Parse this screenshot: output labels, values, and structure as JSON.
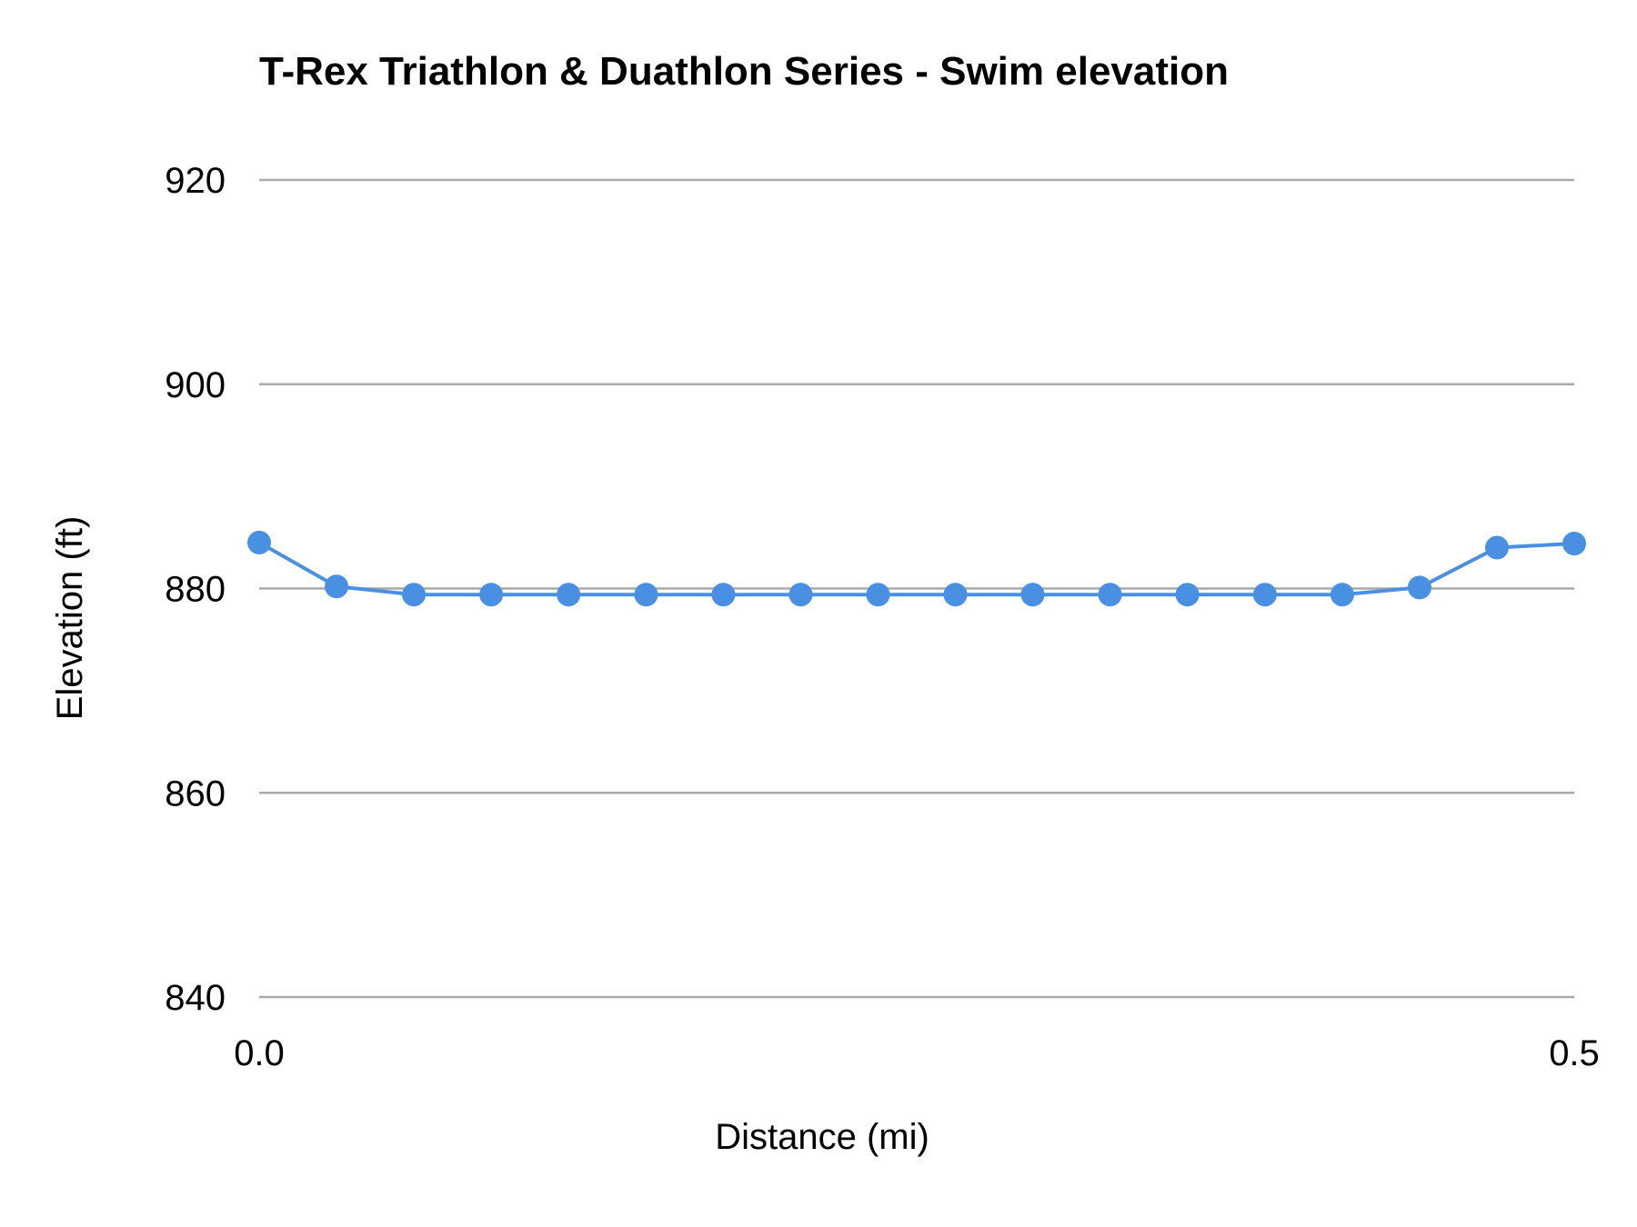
{
  "chart_data": {
    "type": "line",
    "title": "T-Rex Triathlon & Duathlon Series - Swim elevation",
    "xlabel": "Distance (mi)",
    "ylabel": "Elevation (ft)",
    "xlim": [
      0.0,
      0.5
    ],
    "ylim": [
      840,
      920
    ],
    "x_ticks": [
      "0.0",
      "0.5"
    ],
    "y_ticks": [
      "840",
      "860",
      "880",
      "900",
      "920"
    ],
    "grid": "horizontal",
    "legend": "none",
    "color": "#4a90e2",
    "x": [
      0.0,
      0.0294,
      0.0588,
      0.0882,
      0.1176,
      0.1471,
      0.1765,
      0.2059,
      0.2353,
      0.2647,
      0.2941,
      0.3235,
      0.3529,
      0.3824,
      0.4118,
      0.4412,
      0.4706,
      0.5
    ],
    "y": [
      884.5,
      880.2,
      879.4,
      879.4,
      879.4,
      879.4,
      879.4,
      879.4,
      879.4,
      879.4,
      879.4,
      879.4,
      879.4,
      879.4,
      879.4,
      880.1,
      884.0,
      884.4
    ]
  }
}
